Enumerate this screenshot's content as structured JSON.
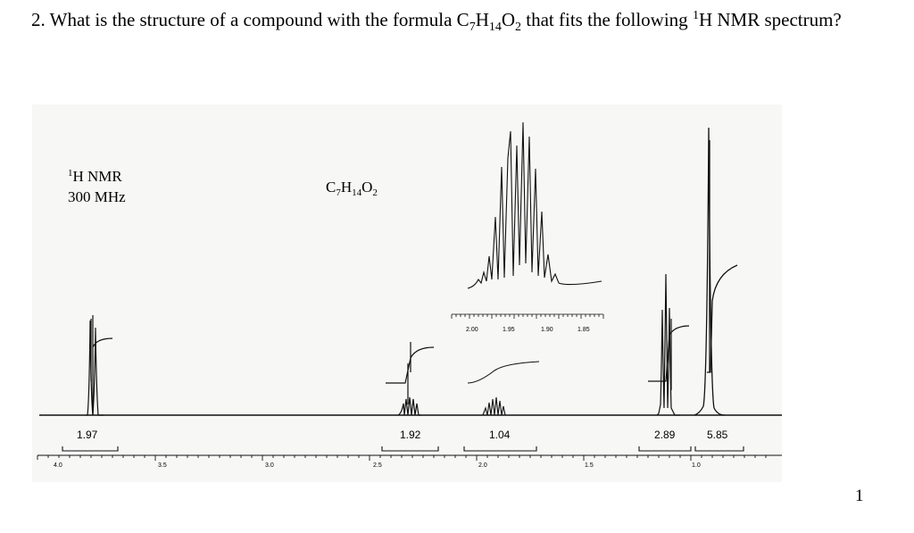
{
  "question": {
    "number": "2.",
    "text_before": "What is the structure of a compound with the formula C",
    "sub1": "7",
    "text_h": "H",
    "sub2": "14",
    "text_o": "O",
    "sub3": "2",
    "text_mid": " that fits the following ",
    "sup1": "1",
    "text_after": "H NMR spectrum?"
  },
  "spectrum": {
    "nucleus_sup": "1",
    "nucleus": "H NMR",
    "frequency": "300 MHz",
    "formula": {
      "c": "C",
      "c_sub": "7",
      "h": "H",
      "h_sub": "14",
      "o": "O",
      "o_sub": "2"
    },
    "axis_ticks": [
      "4.0",
      "3.5",
      "3.0",
      "2.5",
      "2.0",
      "1.5",
      "1.0"
    ],
    "inset_ticks": [
      "2.00",
      "1.95",
      "1.90",
      "1.85"
    ],
    "integrals": [
      "1.97",
      "1.92",
      "1.04",
      "2.89",
      "5.85"
    ]
  },
  "chart_data": {
    "type": "line",
    "x_axis": {
      "ticks": [
        4.0,
        3.5,
        3.0,
        2.5,
        2.0,
        1.5,
        1.0
      ],
      "reversed": true
    },
    "peaks": [
      {
        "integral": 1.97
      },
      {
        "integral": 1.92
      },
      {
        "integral": 1.04
      },
      {
        "integral": 2.89
      },
      {
        "integral": 5.85
      }
    ],
    "inset": {
      "ticks": [
        2.0,
        1.95,
        1.9,
        1.85
      ]
    },
    "grid": false
  },
  "page": {
    "number": "1"
  }
}
